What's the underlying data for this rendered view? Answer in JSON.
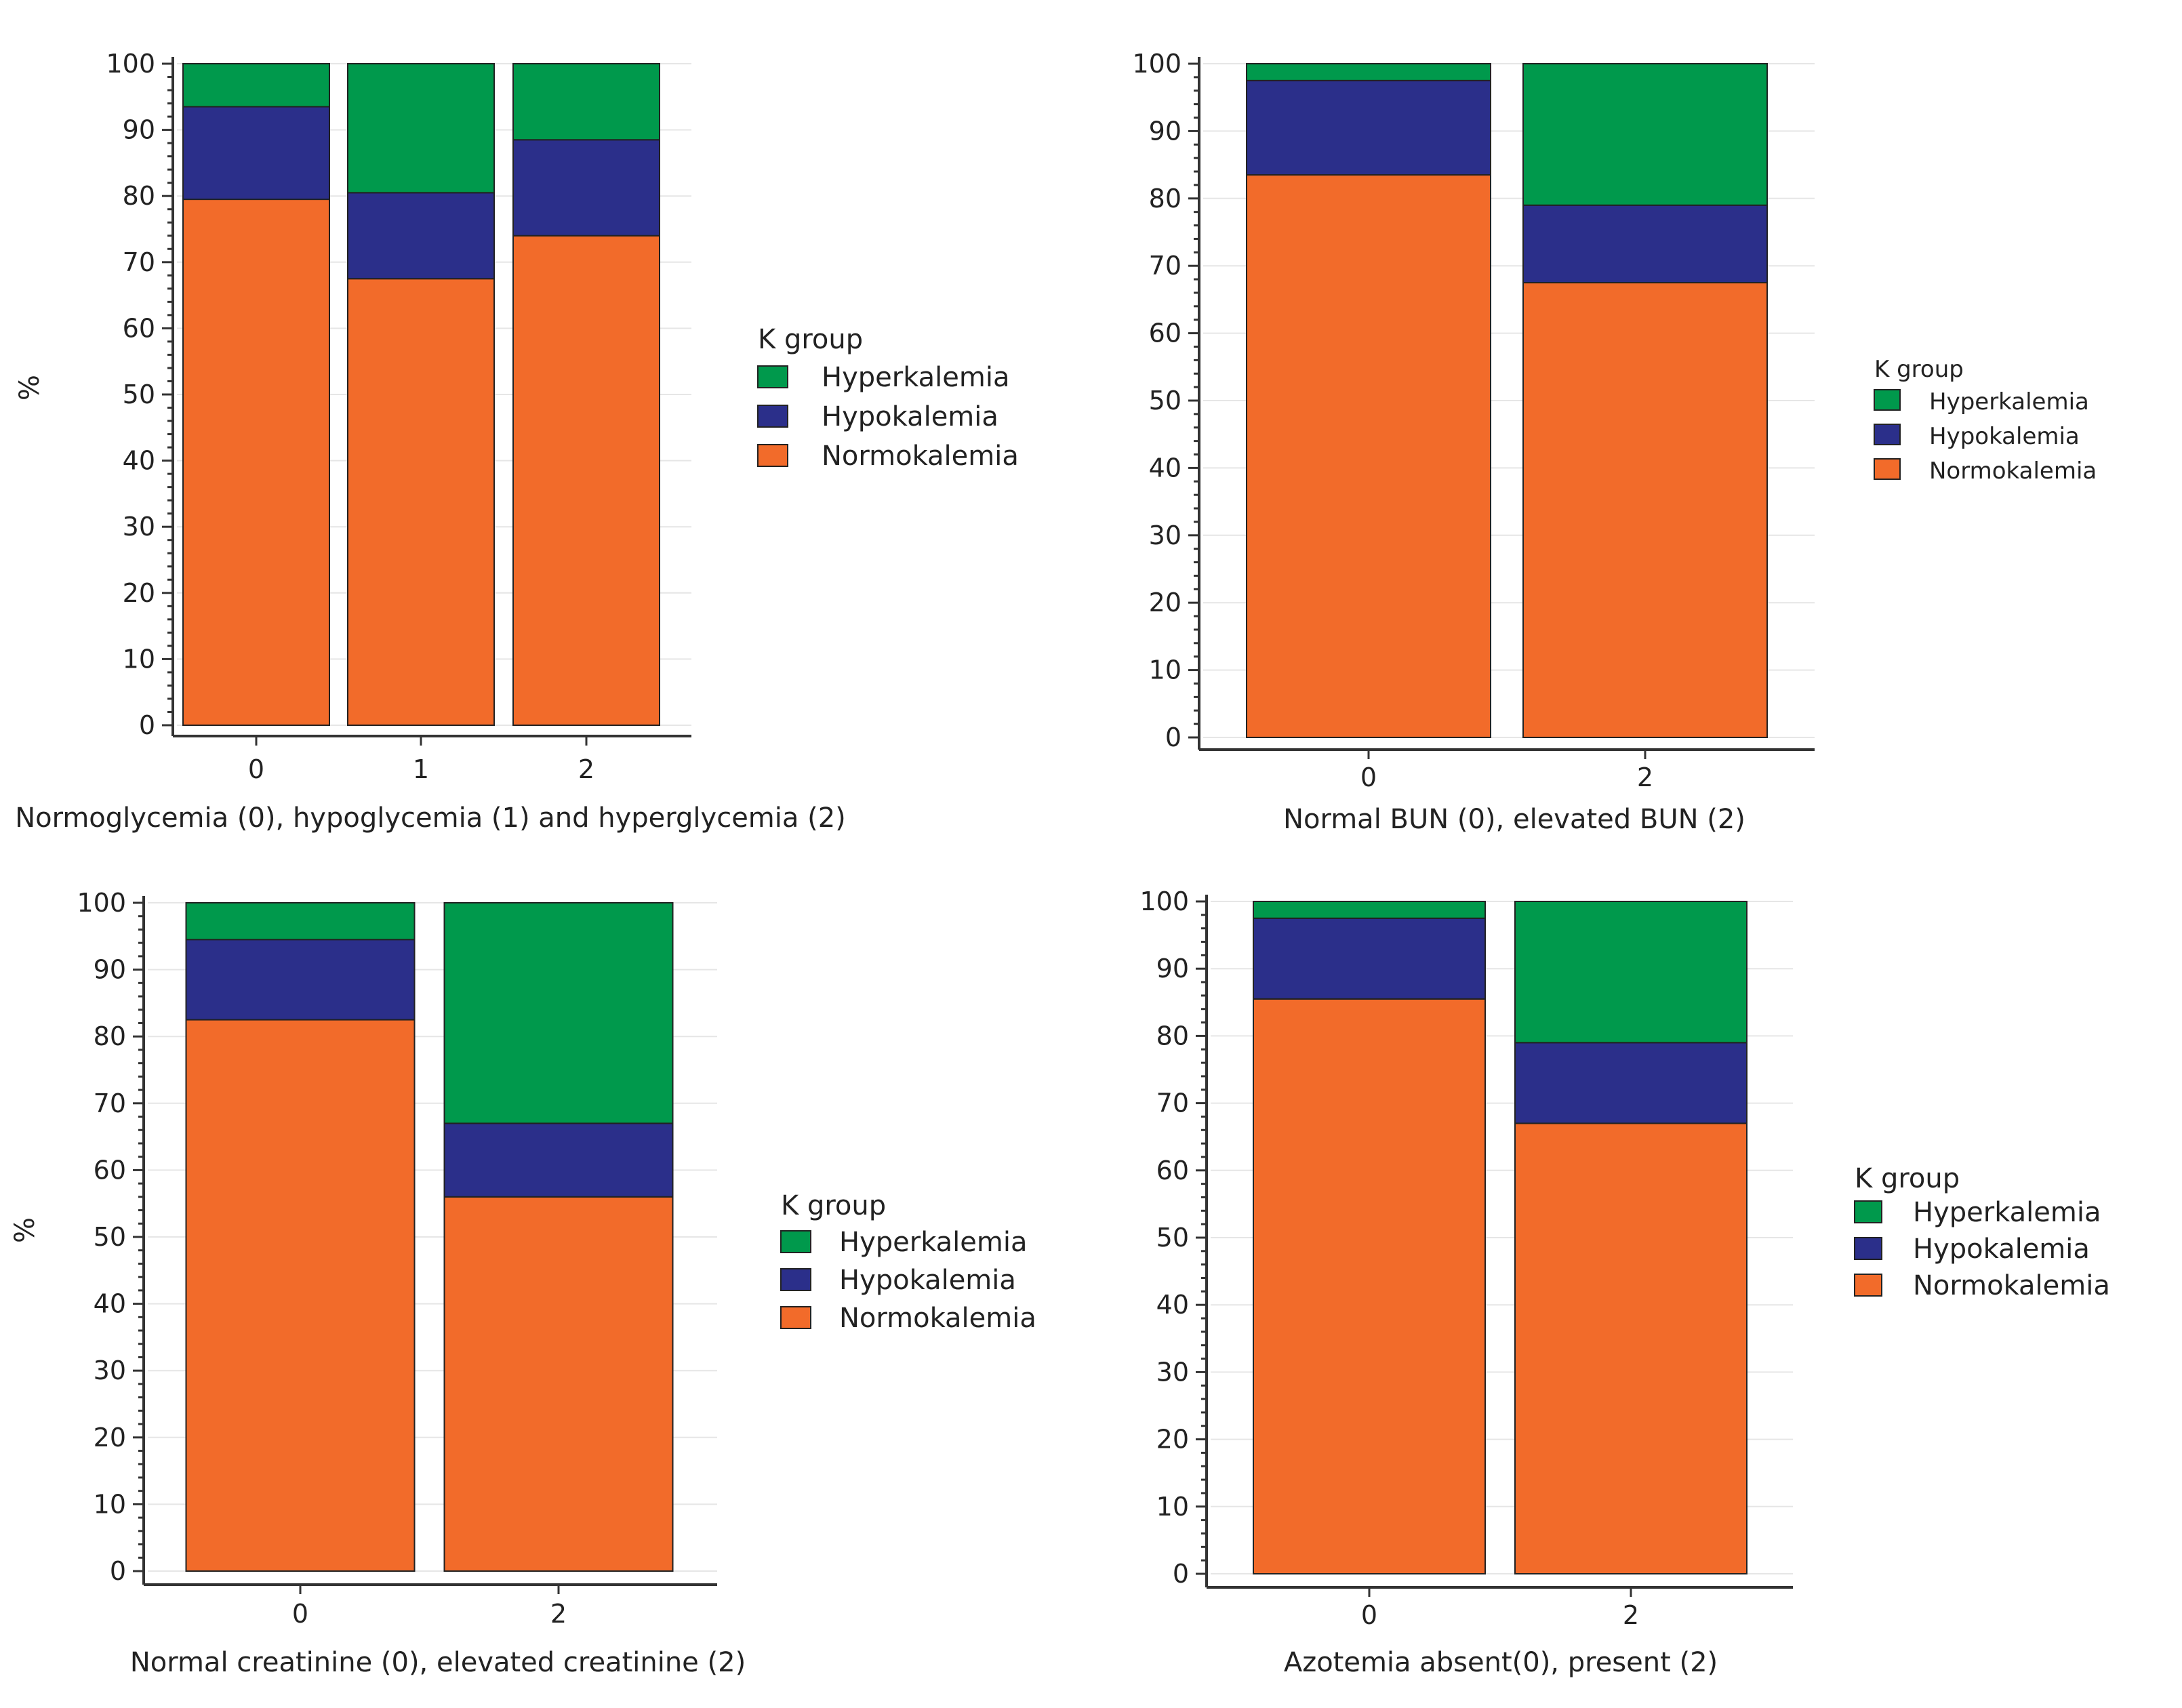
{
  "colors": {
    "Hyperkalemia": "#00994c",
    "Hypokalemia": "#2b2f8a",
    "Normokalemia": "#f26b2a"
  },
  "chart_data": [
    {
      "type": "bar",
      "stacked": true,
      "xlabel": "Normoglycemia (0), hypoglycemia (1) and hyperglycemia (2)",
      "ylabel": "%",
      "categories": [
        "0",
        "1",
        "2"
      ],
      "ylim": [
        0,
        100
      ],
      "yticks": [
        0,
        10,
        20,
        30,
        40,
        50,
        60,
        70,
        80,
        90,
        100
      ],
      "legend": {
        "title": "K group",
        "entries": [
          "Hyperkalemia",
          "Hypokalemia",
          "Normokalemia"
        ]
      },
      "series": [
        {
          "name": "Normokalemia",
          "values": [
            79.5,
            67.5,
            74
          ]
        },
        {
          "name": "Hypokalemia",
          "values": [
            14,
            13,
            14.5
          ]
        },
        {
          "name": "Hyperkalemia",
          "values": [
            6.5,
            19.5,
            11.5
          ]
        }
      ]
    },
    {
      "type": "bar",
      "stacked": true,
      "xlabel": "Normal BUN (0), elevated BUN (2)",
      "ylabel": "",
      "categories": [
        "0",
        "2"
      ],
      "ylim": [
        0,
        100
      ],
      "yticks": [
        0,
        10,
        20,
        30,
        40,
        50,
        60,
        70,
        80,
        90,
        100
      ],
      "legend": {
        "title": "K group",
        "entries": [
          "Hyperkalemia",
          "Hypokalemia",
          "Normokalemia"
        ]
      },
      "series": [
        {
          "name": "Normokalemia",
          "values": [
            83.5,
            67.5
          ]
        },
        {
          "name": "Hypokalemia",
          "values": [
            14,
            11.5
          ]
        },
        {
          "name": "Hyperkalemia",
          "values": [
            2.5,
            21
          ]
        }
      ]
    },
    {
      "type": "bar",
      "stacked": true,
      "xlabel": "Normal creatinine (0),  elevated creatinine (2)",
      "ylabel": "%",
      "categories": [
        "0",
        "2"
      ],
      "ylim": [
        0,
        100
      ],
      "yticks": [
        0,
        10,
        20,
        30,
        40,
        50,
        60,
        70,
        80,
        90,
        100
      ],
      "legend": {
        "title": "K group",
        "entries": [
          "Hyperkalemia",
          "Hypokalemia",
          "Normokalemia"
        ]
      },
      "series": [
        {
          "name": "Normokalemia",
          "values": [
            82.5,
            56
          ]
        },
        {
          "name": "Hypokalemia",
          "values": [
            12,
            11
          ]
        },
        {
          "name": "Hyperkalemia",
          "values": [
            5.5,
            33
          ]
        }
      ]
    },
    {
      "type": "bar",
      "stacked": true,
      "xlabel": "Azotemia absent(0), present (2)",
      "ylabel": "",
      "categories": [
        "0",
        "2"
      ],
      "ylim": [
        0,
        100
      ],
      "yticks": [
        0,
        10,
        20,
        30,
        40,
        50,
        60,
        70,
        80,
        90,
        100
      ],
      "legend": {
        "title": "K group",
        "entries": [
          "Hyperkalemia",
          "Hypokalemia",
          "Normokalemia"
        ]
      },
      "series": [
        {
          "name": "Normokalemia",
          "values": [
            85.5,
            67
          ]
        },
        {
          "name": "Hypokalemia",
          "values": [
            12,
            12
          ]
        },
        {
          "name": "Hyperkalemia",
          "values": [
            2.5,
            21
          ]
        }
      ]
    }
  ]
}
